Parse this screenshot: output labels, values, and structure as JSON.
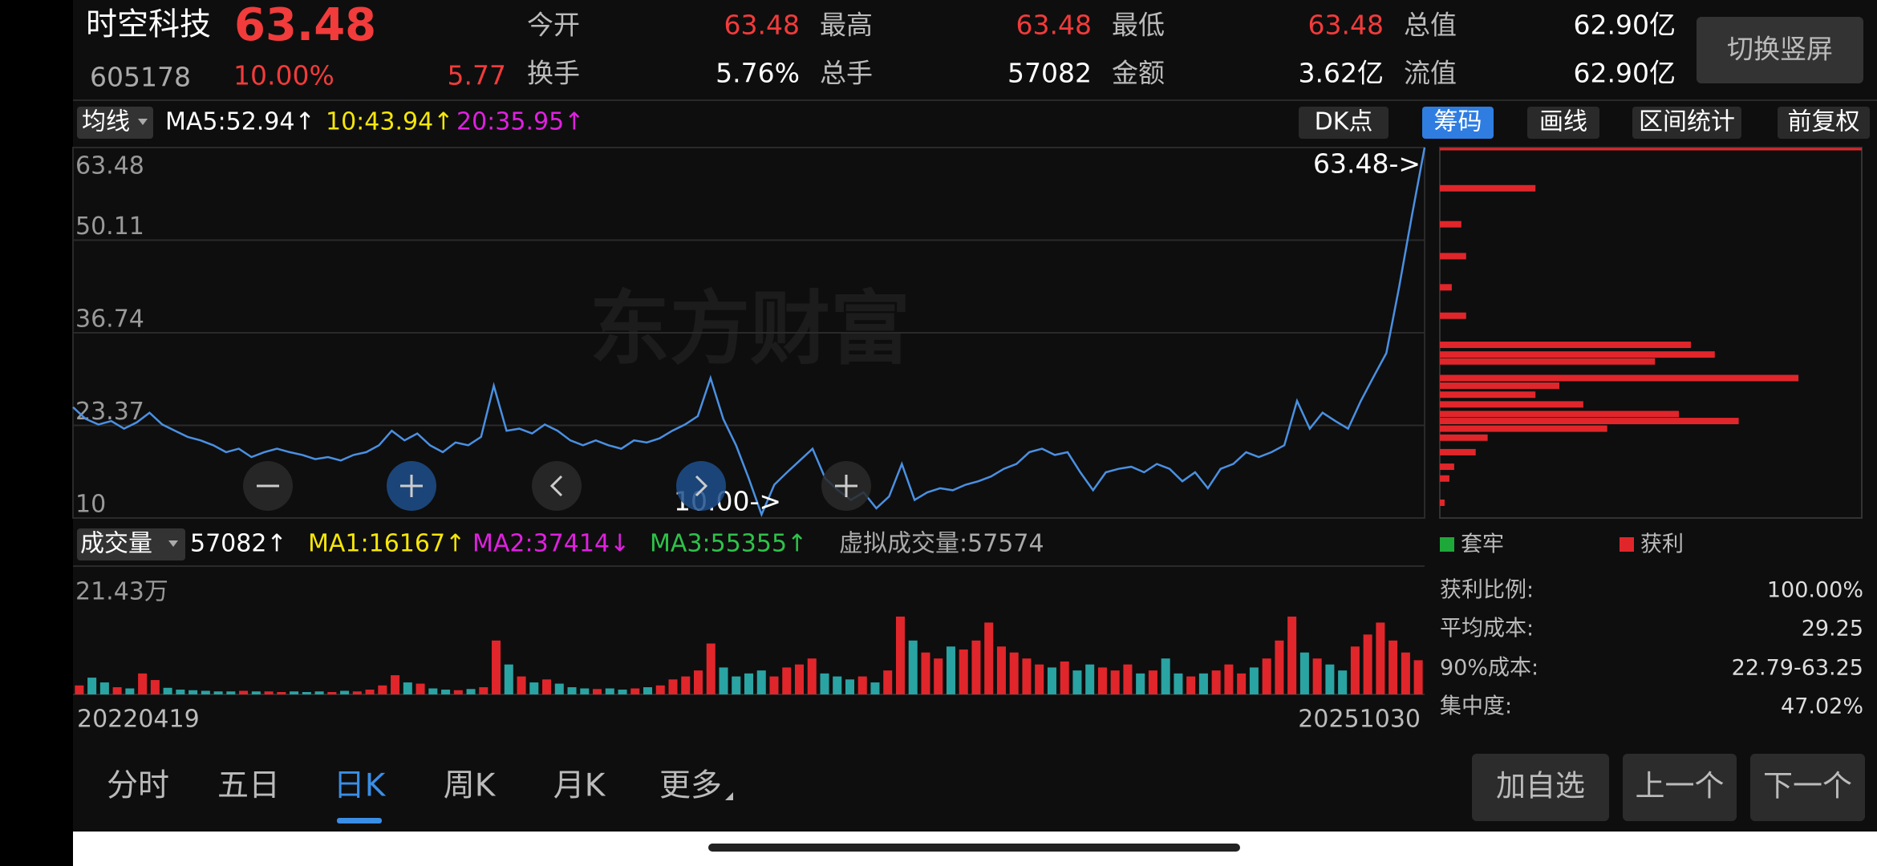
{
  "header": {
    "name": "时空科技",
    "price": "63.48",
    "code": "605178",
    "change_pct": "10.00%",
    "change": "5.77",
    "quote": [
      {
        "label": "今开",
        "value": "63.48",
        "color": "#f23b3b"
      },
      {
        "label": "最高",
        "value": "63.48",
        "color": "#f23b3b"
      },
      {
        "label": "最低",
        "value": "63.48",
        "color": "#f23b3b"
      },
      {
        "label": "总值",
        "value": "62.90亿",
        "color": "#ffffff"
      },
      {
        "label": "换手",
        "value": "5.76%",
        "color": "#ffffff"
      },
      {
        "label": "总手",
        "value": "57082",
        "color": "#ffffff"
      },
      {
        "label": "金额",
        "value": "3.62亿",
        "color": "#ffffff"
      },
      {
        "label": "流值",
        "value": "62.90亿",
        "color": "#ffffff"
      }
    ]
  },
  "orientation_button": "切换竖屏",
  "toolbar": {
    "indicator": "均线",
    "ma5": "MA5:52.94↑",
    "ma10": "10:43.94↑",
    "ma20": "20:35.95↑",
    "buttons": [
      "DK点",
      "筹码",
      "画线",
      "区间统计",
      "前复权"
    ],
    "active_button": 1
  },
  "watermark": "东方财富",
  "chart_data": [
    {
      "type": "line",
      "color": "#4a90e2",
      "ylim": [
        10,
        63.48
      ],
      "yticks": [
        10,
        23.37,
        36.74,
        50.11,
        63.48
      ],
      "grid": true,
      "annotations": [
        "63.48->",
        "10.00->"
      ],
      "values": [
        26.0,
        24.3,
        23.5,
        24.0,
        22.9,
        23.8,
        25.2,
        23.5,
        22.6,
        21.7,
        21.2,
        20.5,
        19.5,
        20.0,
        18.8,
        19.5,
        20.0,
        19.5,
        19.1,
        18.5,
        18.8,
        18.3,
        19.1,
        19.5,
        20.5,
        22.6,
        21.2,
        22.2,
        20.5,
        19.5,
        20.9,
        20.5,
        21.7,
        29.1,
        22.6,
        22.9,
        22.2,
        23.5,
        22.6,
        21.2,
        20.5,
        21.2,
        20.5,
        20.0,
        21.2,
        20.9,
        21.5,
        22.6,
        23.5,
        24.7,
        30.2,
        24.3,
        20.5,
        15.7,
        10.5,
        14.8,
        16.6,
        18.3,
        20.0,
        15.7,
        14.0,
        12.6,
        13.7,
        11.4,
        13.1,
        17.8,
        12.6,
        13.7,
        14.3,
        14.0,
        14.8,
        15.3,
        16.0,
        17.1,
        17.8,
        19.5,
        20.0,
        19.1,
        19.5,
        16.6,
        14.0,
        16.6,
        17.1,
        17.4,
        16.6,
        17.8,
        17.1,
        15.3,
        16.6,
        14.3,
        17.1,
        17.8,
        19.5,
        18.8,
        19.5,
        20.5,
        26.9,
        22.9,
        25.2,
        24.0,
        22.9,
        26.9,
        30.4,
        33.8,
        43.3,
        53.6,
        63.48
      ]
    },
    {
      "type": "bar",
      "indicator": "成交量",
      "volume": "57082↑",
      "ma1": "MA1:16167↑",
      "ma2": "MA2:37414↓",
      "ma3": "MA3:55355↑",
      "virtual": "虚拟成交量:57574",
      "up_color": "#e0262b",
      "down_color": "#2aa3a3",
      "ylim": [
        0,
        21.43
      ],
      "yticks": [
        {
          "value": 21.43,
          "label": "21.43万"
        }
      ],
      "x_start": "20220419",
      "x_end": "20251030",
      "values": [
        1.5,
        2.8,
        2.0,
        1.2,
        1.0,
        3.5,
        2.4,
        1.1,
        0.8,
        0.7,
        0.6,
        0.5,
        0.5,
        0.6,
        0.5,
        0.5,
        0.4,
        0.5,
        0.4,
        0.5,
        0.4,
        0.6,
        0.5,
        0.8,
        1.5,
        3.2,
        2.0,
        1.8,
        1.0,
        0.8,
        0.7,
        0.9,
        1.2,
        9.0,
        5.0,
        3.0,
        2.0,
        2.5,
        1.8,
        1.2,
        1.0,
        0.9,
        1.0,
        0.8,
        1.0,
        1.2,
        1.5,
        2.5,
        3.0,
        4.0,
        8.5,
        4.5,
        3.0,
        3.5,
        4.0,
        3.0,
        4.5,
        5.0,
        6.0,
        3.5,
        3.0,
        2.5,
        3.0,
        2.0,
        4.0,
        13.0,
        9.0,
        7.0,
        6.0,
        8.0,
        7.5,
        9.0,
        12.0,
        8.0,
        7.0,
        6.0,
        5.0,
        4.5,
        5.5,
        4.0,
        5.0,
        4.5,
        4.0,
        5.0,
        3.5,
        4.0,
        6.0,
        3.5,
        3.0,
        3.5,
        4.0,
        5.0,
        3.5,
        4.5,
        6.0,
        9.0,
        13.0,
        7.0,
        6.0,
        5.0,
        4.0,
        8.0,
        10.0,
        12.0,
        9.0,
        7.0,
        5.71
      ]
    },
    {
      "type": "hbar",
      "series": [
        {
          "name": "套牢",
          "color": "#1fa83a"
        },
        {
          "name": "获利",
          "color": "#e0262b"
        }
      ],
      "y": [
        57.6,
        52.4,
        47.8,
        43.3,
        39.2,
        35.0,
        33.6,
        32.6,
        30.2,
        29.1,
        27.8,
        26.4,
        25.0,
        24.0,
        22.9,
        21.6,
        19.5,
        17.4,
        15.7,
        12.2
      ],
      "values": [
        80,
        18,
        22,
        10,
        22,
        210,
        230,
        180,
        300,
        100,
        80,
        120,
        200,
        250,
        140,
        40,
        30,
        12,
        8,
        4
      ],
      "stats": [
        {
          "label": "获利比例:",
          "value": "100.00%"
        },
        {
          "label": "平均成本:",
          "value": "29.25"
        },
        {
          "label": "90%成本:",
          "value": "22.79-63.25"
        },
        {
          "label": "集中度:",
          "value": "47.02%"
        }
      ]
    }
  ],
  "tabs": [
    "分时",
    "五日",
    "日K",
    "周K",
    "月K",
    "更多"
  ],
  "active_tab": 2,
  "actions": [
    "加自选",
    "上一个",
    "下一个"
  ]
}
